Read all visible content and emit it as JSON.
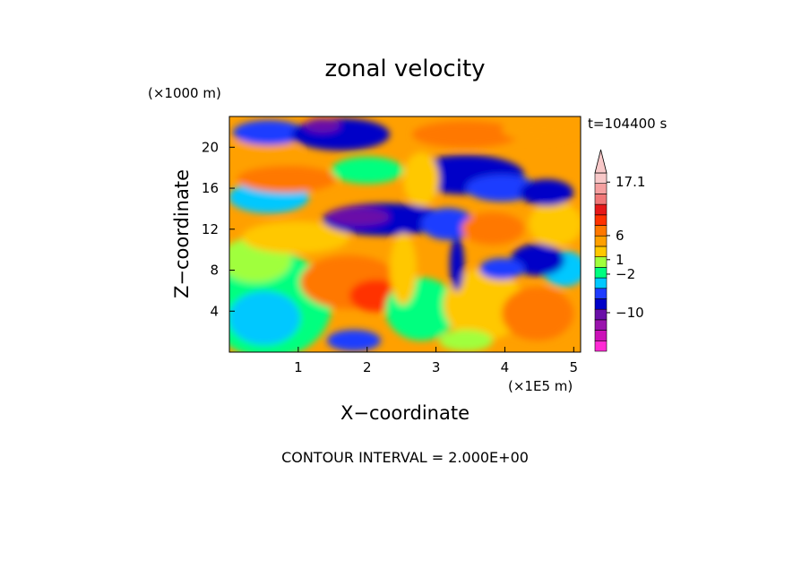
{
  "chart_data": {
    "type": "heatmap",
    "title": "zonal velocity",
    "xlabel": "X−coordinate",
    "ylabel": "Z−coordinate",
    "x_unit": "(×1E5 m)",
    "y_unit": "(×1000 m)",
    "time_label": "t=104400 s",
    "footer": "CONTOUR INTERVAL = 2.000E+00",
    "xlim": [
      0,
      5.1
    ],
    "ylim": [
      0,
      23
    ],
    "x_ticks": [
      {
        "value": 1,
        "label": "1"
      },
      {
        "value": 2,
        "label": "2"
      },
      {
        "value": 3,
        "label": "3"
      },
      {
        "value": 4,
        "label": "4"
      },
      {
        "value": 5,
        "label": "5"
      }
    ],
    "y_ticks": [
      {
        "value": 4,
        "label": "4"
      },
      {
        "value": 8,
        "label": "8"
      },
      {
        "value": 12,
        "label": "12"
      },
      {
        "value": 16,
        "label": "16"
      },
      {
        "value": 20,
        "label": "20"
      }
    ],
    "colorbar": {
      "colors": [
        "#ff2ad4",
        "#cc11b8",
        "#9a14ad",
        "#6a0fa8",
        "#0000c8",
        "#1e3cff",
        "#00c8ff",
        "#00ff7f",
        "#a0ff3c",
        "#ffc800",
        "#ffa000",
        "#ff7800",
        "#ff3200",
        "#e61919",
        "#f07878",
        "#f5a0a0",
        "#f8c8c8"
      ],
      "labels": [
        {
          "value": 17.1,
          "label": "17.1"
        },
        {
          "value": 6,
          "label": "6"
        },
        {
          "value": 1,
          "label": "1"
        },
        {
          "value": -2,
          "label": "−2"
        },
        {
          "value": -10,
          "label": "−10"
        }
      ]
    }
  }
}
